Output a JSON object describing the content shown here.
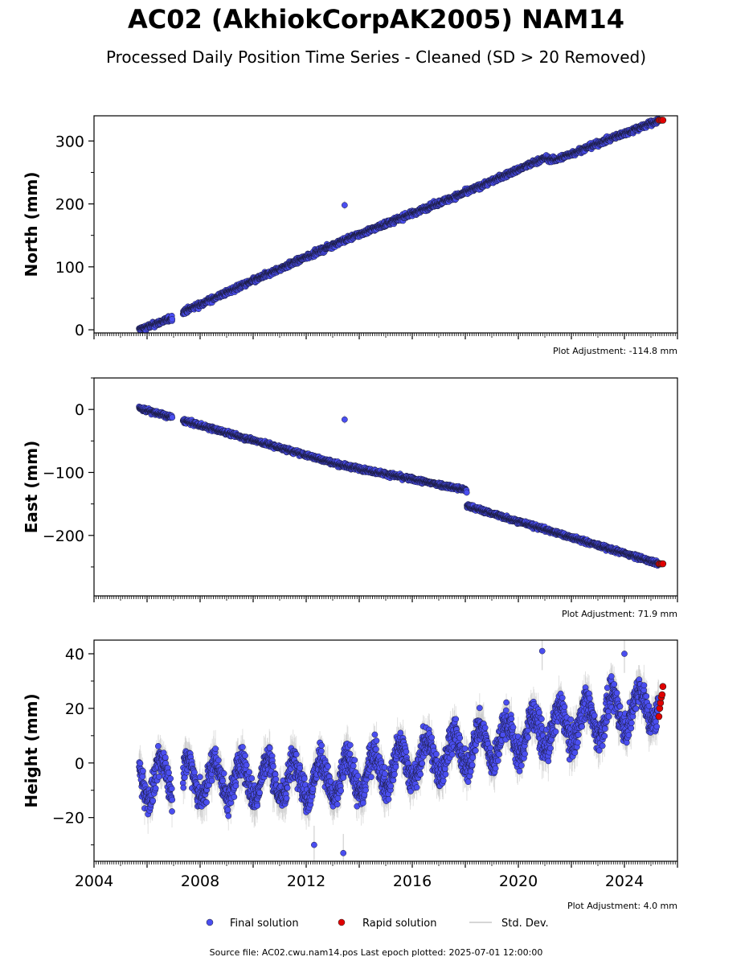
{
  "title": "AC02 (AkhiokCorpAK2005) NAM14",
  "subtitle": "Processed Daily Position Time Series - Cleaned (SD > 20 Removed)",
  "footer": "Source file: AC02.cwu.nam14.pos  Last epoch plotted: 2025-07-01 12:00:00",
  "legend": {
    "final": "Final solution",
    "rapid": "Rapid solution",
    "std": "Std. Dev.",
    "colors": {
      "final": "#4a4ef0",
      "rapid": "#e00000",
      "std": "#c8c8c8"
    }
  },
  "chart_data": [
    {
      "type": "scatter",
      "ylabel": "North (mm)",
      "ylim": [
        -5,
        340
      ],
      "yticks": [
        0,
        100,
        200,
        300
      ],
      "adjustment": "Plot Adjustment: -114.8 mm",
      "xlim": [
        2004,
        2026
      ],
      "trend": [
        [
          2005.7,
          0
        ],
        [
          2006.9,
          18
        ],
        [
          2007.4,
          29
        ],
        [
          2013.3,
          140
        ],
        [
          2018.0,
          218
        ],
        [
          2021.0,
          273
        ],
        [
          2021.4,
          270
        ],
        [
          2025.3,
          333
        ]
      ],
      "gaps": [
        [
          2006.95,
          2007.35
        ]
      ],
      "noise": 3,
      "seasonal": 0,
      "outliers": [
        {
          "x": 2013.45,
          "y": 198
        }
      ],
      "rapid": {
        "x_start": 2025.3,
        "x_end": 2025.45,
        "y": 333
      },
      "show_x_labels": false
    },
    {
      "type": "scatter",
      "ylabel": "East (mm)",
      "ylim": [
        -296,
        50
      ],
      "yticks": [
        0,
        -100,
        -200
      ],
      "adjustment": "Plot Adjustment: 71.9 mm",
      "xlim": [
        2004,
        2026
      ],
      "trend": [
        [
          2005.7,
          2
        ],
        [
          2006.9,
          -12
        ],
        [
          2007.4,
          -18
        ],
        [
          2013.3,
          -88
        ],
        [
          2018.05,
          -128
        ],
        [
          2018.06,
          -153
        ],
        [
          2025.3,
          -245
        ]
      ],
      "gaps": [
        [
          2006.95,
          2007.35
        ]
      ],
      "noise": 2.5,
      "seasonal": 0,
      "outliers": [
        {
          "x": 2013.45,
          "y": -16
        }
      ],
      "rapid": {
        "x_start": 2025.3,
        "x_end": 2025.45,
        "y": -245
      },
      "show_x_labels": false
    },
    {
      "type": "scatter",
      "ylabel": "Height (mm)",
      "ylim": [
        -36,
        45
      ],
      "yticks": [
        40,
        20,
        0,
        -20
      ],
      "adjustment": "Plot Adjustment: 4.0 mm",
      "xlim": [
        2004,
        2026
      ],
      "xticks": [
        2004,
        2008,
        2012,
        2016,
        2020,
        2024
      ],
      "trend": [
        [
          2005.7,
          -6
        ],
        [
          2013.3,
          -6
        ],
        [
          2025.3,
          22
        ]
      ],
      "gaps": [
        [
          2006.95,
          2007.35
        ]
      ],
      "noise": 4,
      "seasonal": 7,
      "outliers": [
        {
          "x": 2013.4,
          "y": -33
        },
        {
          "x": 2012.3,
          "y": -30
        },
        {
          "x": 2020.9,
          "y": 41
        },
        {
          "x": 2024.0,
          "y": 40
        }
      ],
      "rapid": {
        "x_start": 2025.3,
        "x_end": 2025.45,
        "values": [
          17,
          20,
          22,
          24,
          25,
          28
        ]
      },
      "show_x_labels": true
    }
  ]
}
